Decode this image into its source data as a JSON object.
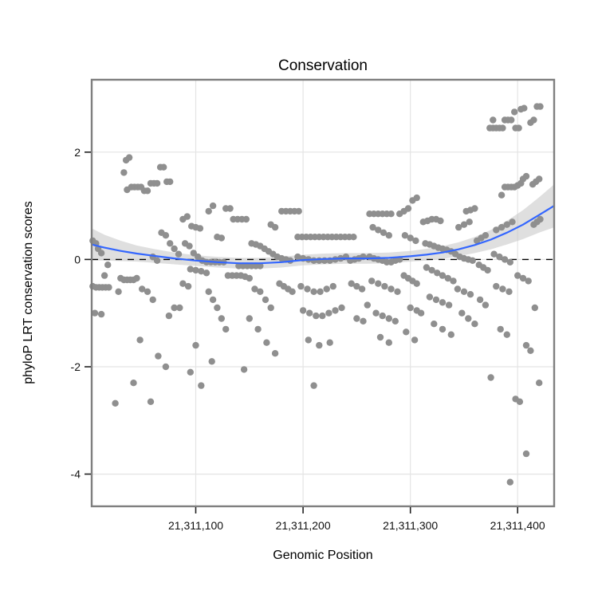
{
  "chart_data": {
    "type": "scatter",
    "title": "Conservation",
    "xlabel": "Genomic Position",
    "ylabel": "phyloP LRT conservation scores",
    "xlim": [
      21311003,
      21311434
    ],
    "ylim": [
      -4.6,
      3.35
    ],
    "xticks": {
      "values": [
        21311100,
        21311200,
        21311300,
        21311400
      ],
      "labels": [
        "21,311,100",
        "21,311,200",
        "21,311,300",
        "21,311,400"
      ]
    },
    "yticks": {
      "values": [
        -4,
        -2,
        0,
        2
      ],
      "labels": [
        "-4",
        "-2",
        "0",
        "2"
      ]
    },
    "reference_line_y": 0,
    "grid": true,
    "legend": "none",
    "colors": {
      "point": "#8f8f8f",
      "smooth_line": "#3366FF",
      "ribbon": "#c9c9c9",
      "gridline": "#e4e4e4",
      "panel_border": "#7f7f7f",
      "reference_line": "#000000",
      "tick": "#222222",
      "background": "#ffffff",
      "text": "#000000"
    },
    "smooth": {
      "x": [
        21311003,
        21311015,
        21311030,
        21311045,
        21311060,
        21311080,
        21311100,
        21311120,
        21311140,
        21311160,
        21311180,
        21311200,
        21311220,
        21311240,
        21311260,
        21311280,
        21311300,
        21311315,
        21311330,
        21311345,
        21311360,
        21311375,
        21311390,
        21311405,
        21311420,
        21311434
      ],
      "y": [
        0.28,
        0.22,
        0.16,
        0.11,
        0.07,
        0.02,
        -0.02,
        -0.05,
        -0.07,
        -0.07,
        -0.05,
        -0.01,
        0.01,
        0.02,
        0.02,
        0.03,
        0.06,
        0.09,
        0.13,
        0.19,
        0.27,
        0.37,
        0.5,
        0.65,
        0.83,
        1.0
      ],
      "lo": [
        -0.02,
        -0.02,
        -0.03,
        -0.04,
        -0.06,
        -0.09,
        -0.12,
        -0.15,
        -0.17,
        -0.17,
        -0.15,
        -0.11,
        -0.09,
        -0.08,
        -0.08,
        -0.07,
        -0.04,
        -0.02,
        0.01,
        0.06,
        0.12,
        0.19,
        0.28,
        0.38,
        0.5,
        0.6
      ],
      "hi": [
        0.58,
        0.46,
        0.35,
        0.26,
        0.2,
        0.13,
        0.08,
        0.05,
        0.03,
        0.03,
        0.05,
        0.09,
        0.11,
        0.12,
        0.12,
        0.13,
        0.16,
        0.2,
        0.25,
        0.32,
        0.42,
        0.55,
        0.72,
        0.92,
        1.16,
        1.4
      ]
    },
    "points": [
      [
        21311004,
        0.35
      ],
      [
        21311007,
        0.3
      ],
      [
        21311009,
        0.2
      ],
      [
        21311012,
        0.12
      ],
      [
        21311004,
        -0.5
      ],
      [
        21311007,
        -0.52
      ],
      [
        21311010,
        -0.52
      ],
      [
        21311013,
        -0.52
      ],
      [
        21311016,
        -0.52
      ],
      [
        21311019,
        -0.52
      ],
      [
        21311006,
        -1.0
      ],
      [
        21311012,
        -1.02
      ],
      [
        21311025,
        -2.68
      ],
      [
        21311015,
        -0.3
      ],
      [
        21311018,
        -0.1
      ],
      [
        21311035,
        1.85
      ],
      [
        21311038,
        1.9
      ],
      [
        21311033,
        1.62
      ],
      [
        21311040,
        1.35
      ],
      [
        21311043,
        1.35
      ],
      [
        21311046,
        1.35
      ],
      [
        21311049,
        1.35
      ],
      [
        21311036,
        1.3
      ],
      [
        21311052,
        1.28
      ],
      [
        21311055,
        1.28
      ],
      [
        21311058,
        1.42
      ],
      [
        21311061,
        1.42
      ],
      [
        21311064,
        1.42
      ],
      [
        21311067,
        1.72
      ],
      [
        21311070,
        1.72
      ],
      [
        21311073,
        1.45
      ],
      [
        21311076,
        1.45
      ],
      [
        21311030,
        -0.35
      ],
      [
        21311033,
        -0.38
      ],
      [
        21311036,
        -0.38
      ],
      [
        21311039,
        -0.38
      ],
      [
        21311042,
        -0.38
      ],
      [
        21311045,
        -0.35
      ],
      [
        21311028,
        -0.6
      ],
      [
        21311050,
        -0.55
      ],
      [
        21311055,
        -0.6
      ],
      [
        21311060,
        -0.75
      ],
      [
        21311048,
        -1.5
      ],
      [
        21311065,
        -1.8
      ],
      [
        21311042,
        -2.3
      ],
      [
        21311058,
        -2.65
      ],
      [
        21311072,
        -2.0
      ],
      [
        21311075,
        -1.05
      ],
      [
        21311080,
        -0.9
      ],
      [
        21311085,
        -0.9
      ],
      [
        21311068,
        0.5
      ],
      [
        21311072,
        0.45
      ],
      [
        21311076,
        0.3
      ],
      [
        21311080,
        0.2
      ],
      [
        21311084,
        0.1
      ],
      [
        21311060,
        0.05
      ],
      [
        21311064,
        -0.02
      ],
      [
        21311088,
        0.75
      ],
      [
        21311092,
        0.8
      ],
      [
        21311096,
        0.62
      ],
      [
        21311100,
        0.6
      ],
      [
        21311104,
        0.58
      ],
      [
        21311090,
        0.3
      ],
      [
        21311094,
        0.25
      ],
      [
        21311098,
        0.12
      ],
      [
        21311102,
        0.05
      ],
      [
        21311106,
        -0.02
      ],
      [
        21311110,
        -0.05
      ],
      [
        21311114,
        -0.05
      ],
      [
        21311118,
        -0.05
      ],
      [
        21311122,
        -0.05
      ],
      [
        21311126,
        -0.05
      ],
      [
        21311095,
        -0.18
      ],
      [
        21311100,
        -0.2
      ],
      [
        21311105,
        -0.22
      ],
      [
        21311110,
        -0.25
      ],
      [
        21311088,
        -0.45
      ],
      [
        21311093,
        -0.5
      ],
      [
        21311112,
        -0.6
      ],
      [
        21311116,
        -0.75
      ],
      [
        21311120,
        -0.9
      ],
      [
        21311124,
        -1.1
      ],
      [
        21311128,
        -1.3
      ],
      [
        21311100,
        -1.6
      ],
      [
        21311095,
        -2.1
      ],
      [
        21311105,
        -2.35
      ],
      [
        21311115,
        -1.9
      ],
      [
        21311130,
        -0.3
      ],
      [
        21311134,
        -0.3
      ],
      [
        21311138,
        -0.3
      ],
      [
        21311128,
        0.95
      ],
      [
        21311132,
        0.95
      ],
      [
        21311112,
        0.9
      ],
      [
        21311116,
        1.0
      ],
      [
        21311135,
        0.75
      ],
      [
        21311139,
        0.75
      ],
      [
        21311143,
        0.75
      ],
      [
        21311147,
        0.75
      ],
      [
        21311120,
        0.42
      ],
      [
        21311124,
        0.4
      ],
      [
        21311140,
        -0.12
      ],
      [
        21311144,
        -0.12
      ],
      [
        21311148,
        -0.12
      ],
      [
        21311152,
        -0.12
      ],
      [
        21311156,
        -0.12
      ],
      [
        21311160,
        -0.12
      ],
      [
        21311142,
        -0.3
      ],
      [
        21311146,
        -0.32
      ],
      [
        21311150,
        -0.35
      ],
      [
        21311155,
        -0.55
      ],
      [
        21311160,
        -0.6
      ],
      [
        21311165,
        -0.75
      ],
      [
        21311170,
        -0.9
      ],
      [
        21311150,
        -1.1
      ],
      [
        21311158,
        -1.3
      ],
      [
        21311166,
        -1.55
      ],
      [
        21311174,
        -1.75
      ],
      [
        21311145,
        -2.05
      ],
      [
        21311152,
        0.3
      ],
      [
        21311156,
        0.28
      ],
      [
        21311160,
        0.25
      ],
      [
        21311164,
        0.2
      ],
      [
        21311168,
        0.15
      ],
      [
        21311172,
        0.1
      ],
      [
        21311176,
        0.05
      ],
      [
        21311180,
        0.02
      ],
      [
        21311184,
        0.0
      ],
      [
        21311188,
        -0.02
      ],
      [
        21311178,
        -0.45
      ],
      [
        21311182,
        -0.5
      ],
      [
        21311186,
        -0.55
      ],
      [
        21311190,
        -0.6
      ],
      [
        21311180,
        0.9
      ],
      [
        21311184,
        0.9
      ],
      [
        21311170,
        0.65
      ],
      [
        21311174,
        0.6
      ],
      [
        21311188,
        0.9
      ],
      [
        21311192,
        0.9
      ],
      [
        21311196,
        0.9
      ],
      [
        21311195,
        0.42
      ],
      [
        21311199,
        0.42
      ],
      [
        21311203,
        0.42
      ],
      [
        21311207,
        0.42
      ],
      [
        21311211,
        0.42
      ],
      [
        21311215,
        0.42
      ],
      [
        21311219,
        0.42
      ],
      [
        21311223,
        0.42
      ],
      [
        21311227,
        0.42
      ],
      [
        21311231,
        0.42
      ],
      [
        21311235,
        0.42
      ],
      [
        21311239,
        0.42
      ],
      [
        21311243,
        0.42
      ],
      [
        21311247,
        0.42
      ],
      [
        21311195,
        0.05
      ],
      [
        21311200,
        0.02
      ],
      [
        21311205,
        0.0
      ],
      [
        21311210,
        -0.02
      ],
      [
        21311215,
        -0.02
      ],
      [
        21311220,
        -0.02
      ],
      [
        21311225,
        -0.02
      ],
      [
        21311230,
        0.0
      ],
      [
        21311235,
        0.02
      ],
      [
        21311240,
        0.05
      ],
      [
        21311244,
        -0.02
      ],
      [
        21311248,
        0.0
      ],
      [
        21311252,
        0.02
      ],
      [
        21311256,
        0.05
      ],
      [
        21311198,
        -0.5
      ],
      [
        21311204,
        -0.55
      ],
      [
        21311210,
        -0.6
      ],
      [
        21311216,
        -0.6
      ],
      [
        21311222,
        -0.55
      ],
      [
        21311228,
        -0.5
      ],
      [
        21311245,
        -0.45
      ],
      [
        21311250,
        -0.5
      ],
      [
        21311255,
        -0.55
      ],
      [
        21311200,
        -0.95
      ],
      [
        21311206,
        -1.0
      ],
      [
        21311212,
        -1.05
      ],
      [
        21311218,
        -1.05
      ],
      [
        21311224,
        -1.0
      ],
      [
        21311230,
        -0.95
      ],
      [
        21311236,
        -0.9
      ],
      [
        21311250,
        -1.1
      ],
      [
        21311256,
        -1.15
      ],
      [
        21311260,
        -0.85
      ],
      [
        21311205,
        -1.5
      ],
      [
        21311215,
        -1.6
      ],
      [
        21311225,
        -1.55
      ],
      [
        21311210,
        -2.35
      ],
      [
        21311262,
        0.85
      ],
      [
        21311266,
        0.85
      ],
      [
        21311270,
        0.85
      ],
      [
        21311274,
        0.85
      ],
      [
        21311278,
        0.85
      ],
      [
        21311282,
        0.85
      ],
      [
        21311265,
        0.6
      ],
      [
        21311270,
        0.55
      ],
      [
        21311275,
        0.5
      ],
      [
        21311280,
        0.45
      ],
      [
        21311262,
        0.05
      ],
      [
        21311266,
        0.02
      ],
      [
        21311270,
        0.0
      ],
      [
        21311274,
        -0.02
      ],
      [
        21311278,
        -0.05
      ],
      [
        21311282,
        -0.05
      ],
      [
        21311286,
        -0.02
      ],
      [
        21311290,
        0.0
      ],
      [
        21311264,
        -0.4
      ],
      [
        21311270,
        -0.45
      ],
      [
        21311276,
        -0.5
      ],
      [
        21311282,
        -0.55
      ],
      [
        21311288,
        -0.6
      ],
      [
        21311268,
        -1.0
      ],
      [
        21311274,
        -1.05
      ],
      [
        21311280,
        -1.1
      ],
      [
        21311286,
        -1.15
      ],
      [
        21311272,
        -1.45
      ],
      [
        21311280,
        -1.55
      ],
      [
        21311290,
        0.85
      ],
      [
        21311294,
        0.9
      ],
      [
        21311298,
        0.95
      ],
      [
        21311302,
        1.1
      ],
      [
        21311306,
        1.15
      ],
      [
        21311295,
        0.45
      ],
      [
        21311300,
        0.4
      ],
      [
        21311305,
        0.35
      ],
      [
        21311294,
        -0.3
      ],
      [
        21311298,
        -0.35
      ],
      [
        21311302,
        -0.4
      ],
      [
        21311306,
        -0.45
      ],
      [
        21311300,
        -0.9
      ],
      [
        21311306,
        -0.95
      ],
      [
        21311310,
        -1.0
      ],
      [
        21311296,
        -1.35
      ],
      [
        21311304,
        -1.5
      ],
      [
        21311312,
        0.7
      ],
      [
        21311316,
        0.72
      ],
      [
        21311320,
        0.75
      ],
      [
        21311324,
        0.75
      ],
      [
        21311328,
        0.72
      ],
      [
        21311314,
        0.3
      ],
      [
        21311318,
        0.28
      ],
      [
        21311322,
        0.25
      ],
      [
        21311326,
        0.22
      ],
      [
        21311330,
        0.2
      ],
      [
        21311334,
        0.18
      ],
      [
        21311338,
        0.15
      ],
      [
        21311315,
        -0.15
      ],
      [
        21311320,
        -0.2
      ],
      [
        21311325,
        -0.25
      ],
      [
        21311330,
        -0.3
      ],
      [
        21311335,
        -0.35
      ],
      [
        21311340,
        -0.4
      ],
      [
        21311318,
        -0.7
      ],
      [
        21311324,
        -0.75
      ],
      [
        21311330,
        -0.8
      ],
      [
        21311336,
        -0.85
      ],
      [
        21311322,
        -1.2
      ],
      [
        21311330,
        -1.3
      ],
      [
        21311338,
        -1.4
      ],
      [
        21311345,
        0.6
      ],
      [
        21311350,
        0.65
      ],
      [
        21311355,
        0.7
      ],
      [
        21311342,
        0.1
      ],
      [
        21311346,
        0.05
      ],
      [
        21311350,
        0.02
      ],
      [
        21311354,
        0.0
      ],
      [
        21311358,
        -0.02
      ],
      [
        21311344,
        -0.55
      ],
      [
        21311350,
        -0.6
      ],
      [
        21311356,
        -0.65
      ],
      [
        21311348,
        -1.0
      ],
      [
        21311354,
        -1.1
      ],
      [
        21311360,
        -1.2
      ],
      [
        21311352,
        0.9
      ],
      [
        21311356,
        0.92
      ],
      [
        21311360,
        0.95
      ],
      [
        21311362,
        0.35
      ],
      [
        21311366,
        0.4
      ],
      [
        21311370,
        0.45
      ],
      [
        21311364,
        -0.1
      ],
      [
        21311368,
        -0.15
      ],
      [
        21311372,
        -0.2
      ],
      [
        21311365,
        -0.75
      ],
      [
        21311370,
        -0.85
      ],
      [
        21311375,
        -2.2
      ],
      [
        21311374,
        2.45
      ],
      [
        21311377,
        2.45
      ],
      [
        21311380,
        2.45
      ],
      [
        21311383,
        2.45
      ],
      [
        21311386,
        2.45
      ],
      [
        21311377,
        2.6
      ],
      [
        21311388,
        2.6
      ],
      [
        21311391,
        2.6
      ],
      [
        21311394,
        2.6
      ],
      [
        21311397,
        2.75
      ],
      [
        21311403,
        2.8
      ],
      [
        21311406,
        2.82
      ],
      [
        21311398,
        2.45
      ],
      [
        21311401,
        2.45
      ],
      [
        21311412,
        2.55
      ],
      [
        21311415,
        2.6
      ],
      [
        21311418,
        2.85
      ],
      [
        21311421,
        2.85
      ],
      [
        21311388,
        1.35
      ],
      [
        21311391,
        1.35
      ],
      [
        21311394,
        1.35
      ],
      [
        21311397,
        1.35
      ],
      [
        21311400,
        1.38
      ],
      [
        21311403,
        1.42
      ],
      [
        21311385,
        1.2
      ],
      [
        21311405,
        1.5
      ],
      [
        21311408,
        1.55
      ],
      [
        21311414,
        1.4
      ],
      [
        21311417,
        1.45
      ],
      [
        21311420,
        1.5
      ],
      [
        21311380,
        0.55
      ],
      [
        21311385,
        0.6
      ],
      [
        21311390,
        0.65
      ],
      [
        21311395,
        0.7
      ],
      [
        21311415,
        0.65
      ],
      [
        21311418,
        0.7
      ],
      [
        21311421,
        0.75
      ],
      [
        21311378,
        0.1
      ],
      [
        21311383,
        0.05
      ],
      [
        21311388,
        0.0
      ],
      [
        21311393,
        -0.05
      ],
      [
        21311380,
        -0.5
      ],
      [
        21311386,
        -0.55
      ],
      [
        21311392,
        -0.6
      ],
      [
        21311384,
        -1.3
      ],
      [
        21311390,
        -1.4
      ],
      [
        21311408,
        -1.6
      ],
      [
        21311412,
        -1.7
      ],
      [
        21311400,
        -0.3
      ],
      [
        21311405,
        -0.35
      ],
      [
        21311410,
        -0.4
      ],
      [
        21311398,
        -2.6
      ],
      [
        21311402,
        -2.65
      ],
      [
        21311416,
        -0.9
      ],
      [
        21311420,
        -2.3
      ],
      [
        21311393,
        -4.15
      ],
      [
        21311408,
        -3.62
      ]
    ]
  }
}
